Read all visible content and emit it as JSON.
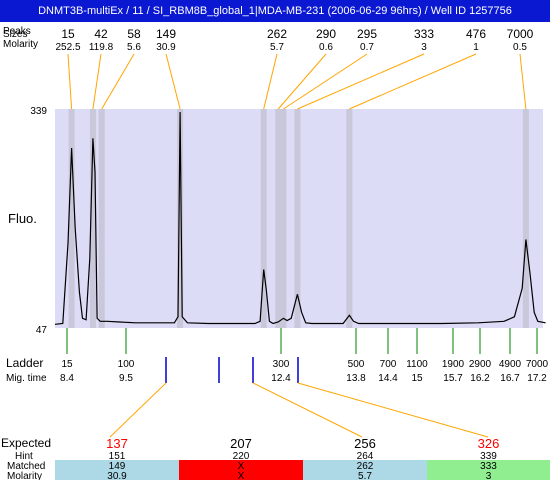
{
  "title": "DNMT3B-multiEx / 11 / SI_RBM8B_global_1|MDA-MB-231 (2006-06-29 96hrs) / Well ID 1257756",
  "header": {
    "sizes_label": "Sizes",
    "peaks_label": "Peaks",
    "molarity_label": "Molarity",
    "fluo_label": "Fluo.",
    "ladder_label": "Ladder",
    "migtime_label": "Mig. time",
    "ymax_label": "339",
    "ymin_label": "47"
  },
  "chart_data": {
    "type": "line",
    "ylabel": "Fluo.",
    "ylim": [
      47,
      339
    ],
    "peaks": [
      {
        "size": "15",
        "molarity": "252.5"
      },
      {
        "size": "42",
        "molarity": "119.8"
      },
      {
        "size": "58",
        "molarity": "5.6"
      },
      {
        "size": "149",
        "molarity": "30.9"
      },
      {
        "size": "262",
        "molarity": "5.7"
      },
      {
        "size": "290",
        "molarity": "0.6"
      },
      {
        "size": "295",
        "molarity": "0.7"
      },
      {
        "size": "333",
        "molarity": "3"
      },
      {
        "size": "476",
        "molarity": "1"
      },
      {
        "size": "7000",
        "molarity": "0.5"
      }
    ],
    "ladder": [
      {
        "size": "15",
        "time": "8.4"
      },
      {
        "size": "100",
        "time": "9.5"
      },
      {
        "size": "300",
        "time": "12.4"
      },
      {
        "size": "500",
        "time": "13.8"
      },
      {
        "size": "700",
        "time": "14.4"
      },
      {
        "size": "1100",
        "time": "15"
      },
      {
        "size": "1900",
        "time": "15.7"
      },
      {
        "size": "2900",
        "time": "16.2"
      },
      {
        "size": "4900",
        "time": "16.7"
      },
      {
        "size": "7000",
        "time": "17.2"
      }
    ],
    "trace": [
      [
        8.05,
        52
      ],
      [
        8.2,
        53
      ],
      [
        8.3,
        160
      ],
      [
        8.37,
        287
      ],
      [
        8.44,
        180
      ],
      [
        8.52,
        95
      ],
      [
        8.58,
        60
      ],
      [
        8.65,
        58
      ],
      [
        8.72,
        140
      ],
      [
        8.78,
        300
      ],
      [
        8.82,
        255
      ],
      [
        8.86,
        60
      ],
      [
        8.92,
        56
      ],
      [
        9.05,
        56
      ],
      [
        9.3,
        55
      ],
      [
        9.6,
        54
      ],
      [
        10.0,
        54
      ],
      [
        10.35,
        54
      ],
      [
        10.42,
        62
      ],
      [
        10.46,
        335
      ],
      [
        10.5,
        62
      ],
      [
        10.6,
        54
      ],
      [
        11.0,
        53
      ],
      [
        11.5,
        53
      ],
      [
        11.9,
        53
      ],
      [
        12.0,
        56
      ],
      [
        12.07,
        125
      ],
      [
        12.12,
        98
      ],
      [
        12.18,
        56
      ],
      [
        12.25,
        53
      ],
      [
        12.35,
        55
      ],
      [
        12.45,
        60
      ],
      [
        12.52,
        57
      ],
      [
        12.6,
        60
      ],
      [
        12.72,
        92
      ],
      [
        12.8,
        68
      ],
      [
        12.88,
        54
      ],
      [
        13.0,
        53
      ],
      [
        13.6,
        53
      ],
      [
        13.72,
        64
      ],
      [
        13.8,
        56
      ],
      [
        13.9,
        53
      ],
      [
        14.5,
        53
      ],
      [
        15.5,
        53
      ],
      [
        16.2,
        54
      ],
      [
        16.7,
        56
      ],
      [
        16.9,
        62
      ],
      [
        17.05,
        100
      ],
      [
        17.12,
        165
      ],
      [
        17.2,
        120
      ],
      [
        17.28,
        68
      ],
      [
        17.35,
        56
      ],
      [
        17.5,
        54
      ]
    ],
    "expected": [
      {
        "size": "137",
        "hint": "151",
        "matched": "149",
        "molarity": "30.9",
        "status": "matched",
        "marker_time": 10.5
      },
      {
        "size": "207",
        "hint": "220",
        "matched": "X",
        "molarity": "X",
        "status": "missing",
        "marker_time": 11.2
      },
      {
        "size": "256",
        "hint": "264",
        "matched": "262",
        "molarity": "5.7",
        "status": "matched",
        "marker_time": 12.12
      },
      {
        "size": "326",
        "hint": "339",
        "matched": "333",
        "molarity": "3",
        "status": "matched",
        "marker_time": 12.72
      }
    ],
    "expected_labels": {
      "expected": "Expected",
      "hint": "Hint",
      "matched": "Matched",
      "molarity": "Molarity"
    },
    "colors": {
      "plot_bg": "#dcdcf6",
      "marker_band": "#c8c8da",
      "trace": "#000000",
      "peak_connector": "#ffa500",
      "ladder_tick": "#008000",
      "expected_marker": "#0000cc",
      "status_matched": "#add8e6",
      "status_missing": "#ff0000",
      "status_matched_last": "#90ee90",
      "expected_red": "#ff0000"
    }
  }
}
